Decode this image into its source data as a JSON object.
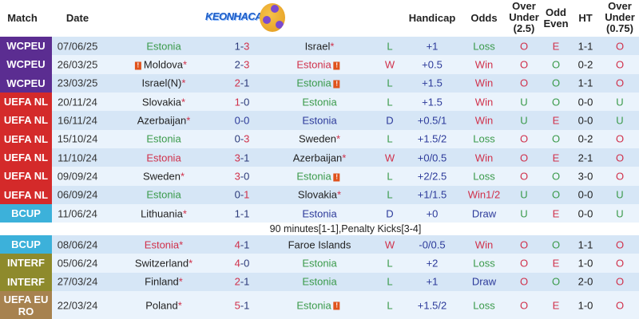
{
  "logo_text": "KEONHACAI88",
  "headers": {
    "match": "Match",
    "date": "Date",
    "handicap": "Handicap",
    "odds": "Odds",
    "ou25": "Over\nUnder\n(2.5)",
    "oe": "Odd\nEven",
    "ht": "HT",
    "ou075": "Over\nUnder\n(0.75)"
  },
  "colors": {
    "WCPEU": "#5b2d91",
    "UEFA NL": "#d42a2a",
    "BCUP": "#3cb1da",
    "INTERF": "#8e8a2c",
    "UEFA EURO": "#a7824f",
    "green": "#3a9a4a",
    "red": "#d0304a",
    "blue": "#2c3a9a",
    "row_a": "#d6e6f6",
    "row_b": "#eaf3fc"
  },
  "note": "90 minutes[1-1],Penalty Kicks[3-4]",
  "rows": [
    {
      "match": "WCPEU",
      "date": "07/06/25",
      "home": "Estonia",
      "home_star": false,
      "home_card": false,
      "score": [
        "1",
        "3"
      ],
      "away": "Israel",
      "away_star": true,
      "away_card": false,
      "result": "L",
      "handicap": "+1",
      "odds": "Loss",
      "ou": "O",
      "oe": "E",
      "ht": "1-1",
      "ou075": "O"
    },
    {
      "match": "WCPEU",
      "date": "26/03/25",
      "home": "Moldova",
      "home_star": true,
      "home_card": true,
      "score": [
        "2",
        "3"
      ],
      "away": "Estonia",
      "away_star": false,
      "away_card": true,
      "result": "W",
      "handicap": "+0.5",
      "odds": "Win",
      "ou": "O",
      "oe": "O",
      "ht": "0-2",
      "ou075": "O"
    },
    {
      "match": "WCPEU",
      "date": "23/03/25",
      "home": "Israel(N)",
      "home_star": true,
      "home_card": false,
      "score": [
        "2",
        "1"
      ],
      "away": "Estonia",
      "away_star": false,
      "away_card": true,
      "result": "L",
      "handicap": "+1.5",
      "odds": "Win",
      "ou": "O",
      "oe": "O",
      "ht": "1-1",
      "ou075": "O"
    },
    {
      "match": "UEFA NL",
      "date": "20/11/24",
      "home": "Slovakia",
      "home_star": true,
      "home_card": false,
      "score": [
        "1",
        "0"
      ],
      "away": "Estonia",
      "away_star": false,
      "away_card": false,
      "result": "L",
      "handicap": "+1.5",
      "odds": "Win",
      "ou": "U",
      "oe": "O",
      "ht": "0-0",
      "ou075": "U"
    },
    {
      "match": "UEFA NL",
      "date": "16/11/24",
      "home": "Azerbaijan",
      "home_star": true,
      "home_card": false,
      "score": [
        "0",
        "0"
      ],
      "away": "Estonia",
      "away_star": false,
      "away_card": false,
      "result": "D",
      "handicap": "+0.5/1",
      "odds": "Win",
      "ou": "U",
      "oe": "E",
      "ht": "0-0",
      "ou075": "U"
    },
    {
      "match": "UEFA NL",
      "date": "15/10/24",
      "home": "Estonia",
      "home_star": false,
      "home_card": false,
      "score": [
        "0",
        "3"
      ],
      "away": "Sweden",
      "away_star": true,
      "away_card": false,
      "result": "L",
      "handicap": "+1.5/2",
      "odds": "Loss",
      "ou": "O",
      "oe": "O",
      "ht": "0-2",
      "ou075": "O"
    },
    {
      "match": "UEFA NL",
      "date": "11/10/24",
      "home": "Estonia",
      "home_star": false,
      "home_card": false,
      "score": [
        "3",
        "1"
      ],
      "away": "Azerbaijan",
      "away_star": true,
      "away_card": false,
      "result": "W",
      "handicap": "+0/0.5",
      "odds": "Win",
      "ou": "O",
      "oe": "E",
      "ht": "2-1",
      "ou075": "O"
    },
    {
      "match": "UEFA NL",
      "date": "09/09/24",
      "home": "Sweden",
      "home_star": true,
      "home_card": false,
      "score": [
        "3",
        "0"
      ],
      "away": "Estonia",
      "away_star": false,
      "away_card": true,
      "result": "L",
      "handicap": "+2/2.5",
      "odds": "Loss",
      "ou": "O",
      "oe": "O",
      "ht": "3-0",
      "ou075": "O"
    },
    {
      "match": "UEFA NL",
      "date": "06/09/24",
      "home": "Estonia",
      "home_star": false,
      "home_card": false,
      "score": [
        "0",
        "1"
      ],
      "away": "Slovakia",
      "away_star": true,
      "away_card": false,
      "result": "L",
      "handicap": "+1/1.5",
      "odds": "Win1/2",
      "ou": "U",
      "oe": "O",
      "ht": "0-0",
      "ou075": "U"
    },
    {
      "match": "BCUP",
      "date": "11/06/24",
      "home": "Lithuania",
      "home_star": true,
      "home_card": false,
      "score": [
        "1",
        "1"
      ],
      "away": "Estonia",
      "away_star": false,
      "away_card": false,
      "result": "D",
      "handicap": "+0",
      "odds": "Draw",
      "ou": "U",
      "oe": "E",
      "ht": "0-0",
      "ou075": "U"
    },
    {
      "match": "BCUP",
      "date": "08/06/24",
      "home": "Estonia",
      "home_star": true,
      "home_card": false,
      "score": [
        "4",
        "1"
      ],
      "away": "Faroe Islands",
      "away_star": false,
      "away_card": false,
      "result": "W",
      "handicap": "-0/0.5",
      "odds": "Win",
      "ou": "O",
      "oe": "O",
      "ht": "1-1",
      "ou075": "O"
    },
    {
      "match": "INTERF",
      "date": "05/06/24",
      "home": "Switzerland",
      "home_star": true,
      "home_card": false,
      "score": [
        "4",
        "0"
      ],
      "away": "Estonia",
      "away_star": false,
      "away_card": false,
      "result": "L",
      "handicap": "+2",
      "odds": "Loss",
      "ou": "O",
      "oe": "E",
      "ht": "1-0",
      "ou075": "O"
    },
    {
      "match": "INTERF",
      "date": "27/03/24",
      "home": "Finland",
      "home_star": true,
      "home_card": false,
      "score": [
        "2",
        "1"
      ],
      "away": "Estonia",
      "away_star": false,
      "away_card": false,
      "result": "L",
      "handicap": "+1",
      "odds": "Draw",
      "ou": "O",
      "oe": "O",
      "ht": "2-0",
      "ou075": "O"
    },
    {
      "match": "UEFA EURO",
      "date": "22/03/24",
      "home": "Poland",
      "home_star": true,
      "home_card": false,
      "score": [
        "5",
        "1"
      ],
      "away": "Estonia",
      "away_star": false,
      "away_card": true,
      "result": "L",
      "handicap": "+1.5/2",
      "odds": "Loss",
      "ou": "O",
      "oe": "E",
      "ht": "1-0",
      "ou075": "O"
    }
  ]
}
